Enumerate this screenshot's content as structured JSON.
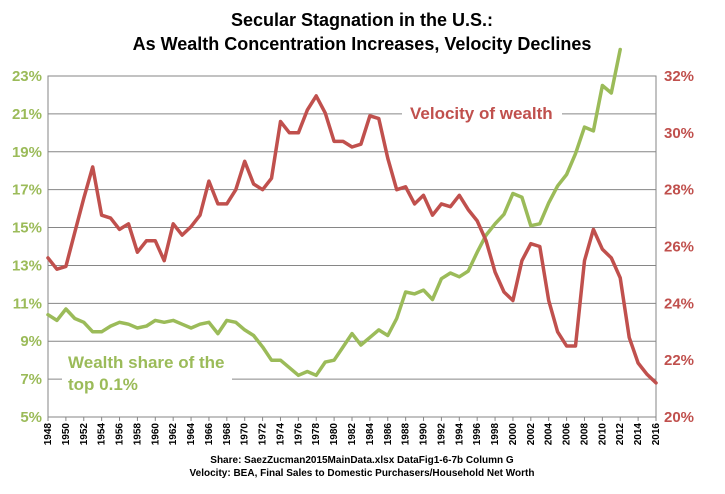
{
  "chart_data": {
    "type": "line",
    "title_line1": "Secular Stagnation in the U.S.:",
    "title_line2": "As Wealth Concentration Increases, Velocity Declines",
    "colors": {
      "velocity": "#c0504d",
      "wealth": "#9bbb59"
    },
    "left_axis": {
      "ylim": [
        5,
        23
      ],
      "ticks": [
        "5%",
        "7%",
        "9%",
        "11%",
        "13%",
        "15%",
        "17%",
        "19%",
        "21%",
        "23%"
      ]
    },
    "right_axis": {
      "ylim": [
        20,
        32
      ],
      "ticks": [
        "20%",
        "22%",
        "24%",
        "26%",
        "28%",
        "30%",
        "32%"
      ]
    },
    "x_ticks": [
      "1948",
      "1950",
      "1952",
      "1954",
      "1956",
      "1958",
      "1960",
      "1962",
      "1964",
      "1966",
      "1968",
      "1970",
      "1972",
      "1974",
      "1976",
      "1978",
      "1980",
      "1982",
      "1984",
      "1986",
      "1988",
      "1990",
      "1992",
      "1994",
      "1996",
      "1998",
      "2000",
      "2002",
      "2004",
      "2006",
      "2008",
      "2010",
      "2012",
      "2014",
      "2016"
    ],
    "grid": true,
    "series": [
      {
        "name": "Wealth share of the top 0.1%",
        "axis": "left",
        "x": [
          1948,
          1949,
          1950,
          1951,
          1952,
          1953,
          1954,
          1955,
          1956,
          1957,
          1958,
          1959,
          1960,
          1961,
          1962,
          1963,
          1964,
          1965,
          1966,
          1967,
          1968,
          1969,
          1970,
          1971,
          1972,
          1973,
          1974,
          1975,
          1976,
          1977,
          1978,
          1979,
          1980,
          1981,
          1982,
          1983,
          1984,
          1985,
          1986,
          1987,
          1988,
          1989,
          1990,
          1991,
          1992,
          1993,
          1994,
          1995,
          1996,
          1997,
          1998,
          1999,
          2000,
          2001,
          2002,
          2003,
          2004,
          2005,
          2006,
          2007,
          2008,
          2009,
          2010,
          2011,
          2012
        ],
        "y": [
          10.4,
          10.1,
          10.7,
          10.2,
          10.0,
          9.5,
          9.5,
          9.8,
          10.0,
          9.9,
          9.7,
          9.8,
          10.1,
          10.0,
          10.1,
          9.9,
          9.7,
          9.9,
          10.0,
          9.4,
          10.1,
          10.0,
          9.6,
          9.3,
          8.7,
          8.0,
          8.0,
          7.6,
          7.2,
          7.4,
          7.2,
          7.9,
          8.0,
          8.7,
          9.4,
          8.8,
          9.2,
          9.6,
          9.3,
          10.2,
          11.6,
          11.5,
          11.7,
          11.2,
          12.3,
          12.6,
          12.4,
          12.7,
          13.7,
          14.6,
          15.2,
          15.7,
          16.8,
          16.6,
          15.1,
          15.2,
          16.3,
          17.2,
          17.8,
          18.9,
          20.3,
          20.1,
          22.5,
          22.1,
          24.4
        ]
      },
      {
        "name": "Velocity of wealth",
        "axis": "right",
        "x": [
          1948,
          1949,
          1950,
          1951,
          1952,
          1953,
          1954,
          1955,
          1956,
          1957,
          1958,
          1959,
          1960,
          1961,
          1962,
          1963,
          1964,
          1965,
          1966,
          1967,
          1968,
          1969,
          1970,
          1971,
          1972,
          1973,
          1974,
          1975,
          1976,
          1977,
          1978,
          1979,
          1980,
          1981,
          1982,
          1983,
          1984,
          1985,
          1986,
          1987,
          1988,
          1989,
          1990,
          1991,
          1992,
          1993,
          1994,
          1995,
          1996,
          1997,
          1998,
          1999,
          2000,
          2001,
          2002,
          2003,
          2004,
          2005,
          2006,
          2007,
          2008,
          2009,
          2010,
          2011,
          2012,
          2013,
          2014,
          2015,
          2016
        ],
        "y": [
          25.6,
          25.2,
          25.3,
          26.5,
          27.7,
          28.8,
          27.1,
          27.0,
          26.6,
          26.8,
          25.8,
          26.2,
          26.2,
          25.5,
          26.8,
          26.4,
          26.7,
          27.1,
          28.3,
          27.5,
          27.5,
          28.0,
          29.0,
          28.2,
          28.0,
          28.4,
          30.4,
          30.0,
          30.0,
          30.8,
          31.3,
          30.7,
          29.7,
          29.7,
          29.5,
          29.6,
          30.6,
          30.5,
          29.1,
          28.0,
          28.1,
          27.5,
          27.8,
          27.1,
          27.5,
          27.4,
          27.8,
          27.3,
          26.9,
          26.2,
          25.1,
          24.4,
          24.1,
          25.5,
          26.1,
          26.0,
          24.1,
          23.0,
          22.5,
          22.5,
          25.5,
          26.6,
          25.9,
          25.6,
          24.9,
          22.8,
          21.9,
          21.5,
          21.2
        ]
      }
    ],
    "annotations": {
      "velocity_label": "Velocity of wealth",
      "wealth_label_line1": "Wealth share of the",
      "wealth_label_line2": "top 0.1%",
      "source_line1": "Share: SaezZucman2015MainData.xlsx DataFig1-6-7b Column G",
      "source_line2": "Velocity: BEA, Final Sales to Domestic Purchasers/Household Net Worth"
    }
  }
}
